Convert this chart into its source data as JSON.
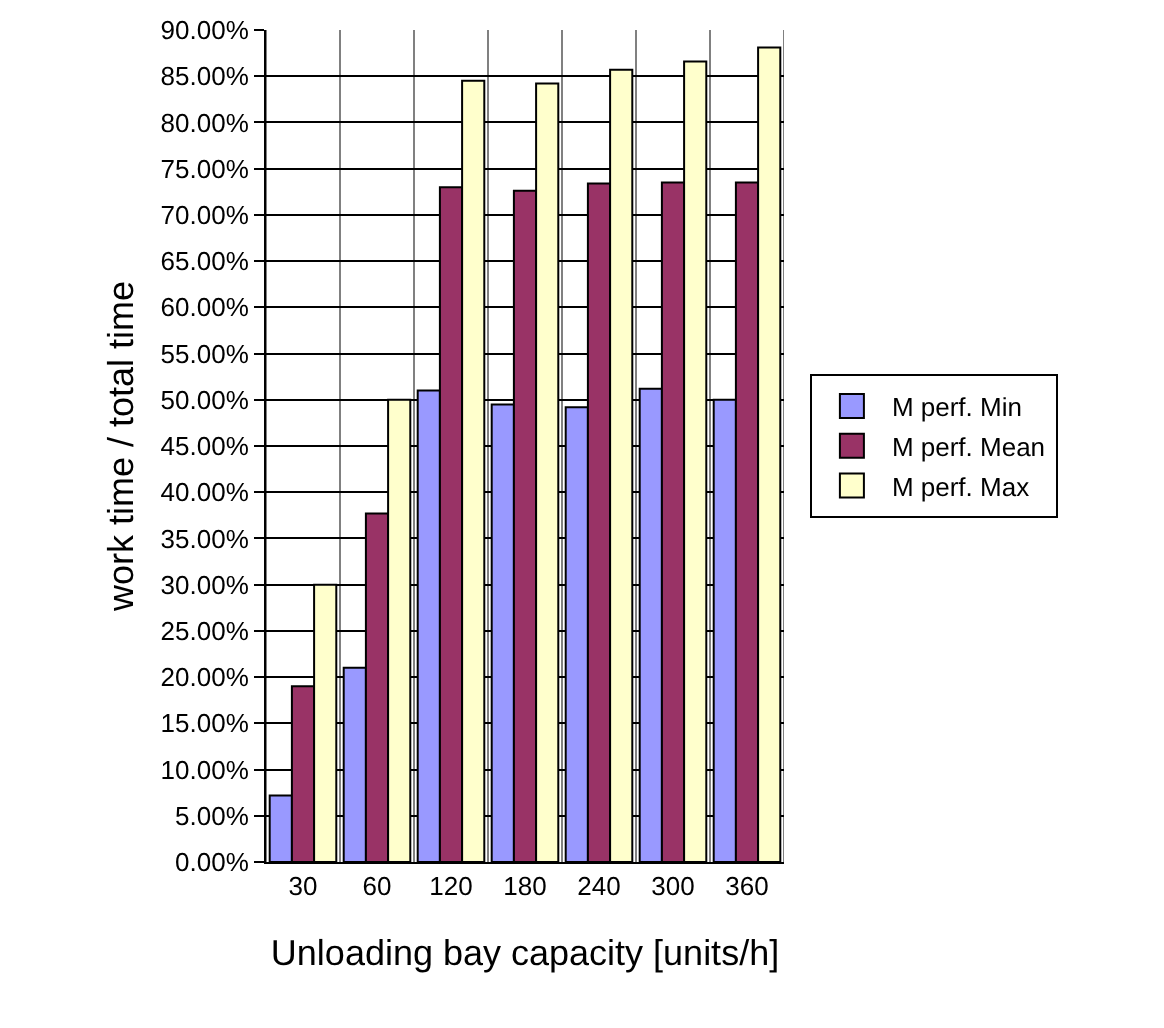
{
  "chart_data": {
    "type": "bar",
    "xlabel": "Unloading bay capacity [units/h]",
    "ylabel": "work time / total time",
    "categories": [
      "30",
      "60",
      "120",
      "180",
      "240",
      "300",
      "360"
    ],
    "series": [
      {
        "name": "M perf. Min",
        "color": "#9999ff",
        "values": [
          7.2,
          21,
          51,
          49.5,
          49.2,
          51.2,
          50
        ]
      },
      {
        "name": "M perf. Mean",
        "color": "#993366",
        "values": [
          19,
          37.7,
          73,
          72.6,
          73.4,
          73.5,
          73.5
        ]
      },
      {
        "name": "M perf. Max",
        "color": "#ffffcc",
        "values": [
          30,
          50,
          84.5,
          84.2,
          85.7,
          86.6,
          88.1
        ]
      }
    ],
    "ylim": [
      0,
      90
    ],
    "yticks": [
      {
        "value": 0,
        "label": "0.00%"
      },
      {
        "value": 5,
        "label": "5.00%"
      },
      {
        "value": 10,
        "label": "10.00%"
      },
      {
        "value": 15,
        "label": "15.00%"
      },
      {
        "value": 20,
        "label": "20.00%"
      },
      {
        "value": 25,
        "label": "25.00%"
      },
      {
        "value": 30,
        "label": "30.00%"
      },
      {
        "value": 35,
        "label": "35.00%"
      },
      {
        "value": 40,
        "label": "40.00%"
      },
      {
        "value": 45,
        "label": "45.00%"
      },
      {
        "value": 50,
        "label": "50.00%"
      },
      {
        "value": 55,
        "label": "55.00%"
      },
      {
        "value": 60,
        "label": "60.00%"
      },
      {
        "value": 65,
        "label": "65.00%"
      },
      {
        "value": 70,
        "label": "70.00%"
      },
      {
        "value": 75,
        "label": "75.00%"
      },
      {
        "value": 80,
        "label": "80.00%"
      },
      {
        "value": 85,
        "label": "85.00%"
      },
      {
        "value": 90,
        "label": "90.00%"
      }
    ],
    "grid": true,
    "legend": "right"
  }
}
